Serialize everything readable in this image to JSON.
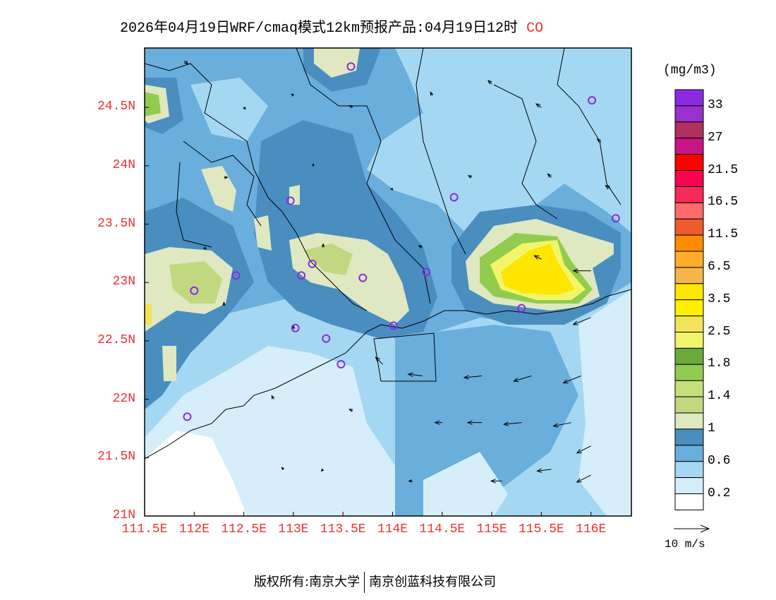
{
  "title": {
    "text": "2026年04月19日WRF/cmaq模式12km预报产品:04月19日12时",
    "species": "CO"
  },
  "footer": {
    "left": "版权所有:南京大学",
    "right": "南京创蓝科技有限公司"
  },
  "chart_data": {
    "type": "heatmap",
    "title": "2026年04月19日WRF/cmaq模式12km预报产品:04月19日12时 CO",
    "xlim": [
      111.5,
      116.4
    ],
    "ylim": [
      21,
      25
    ],
    "x_ticks": [
      {
        "v": 111.5,
        "label": "111.5E"
      },
      {
        "v": 112,
        "label": "112E"
      },
      {
        "v": 112.5,
        "label": "112.5E"
      },
      {
        "v": 113,
        "label": "113E"
      },
      {
        "v": 113.5,
        "label": "113.5E"
      },
      {
        "v": 114,
        "label": "114E"
      },
      {
        "v": 114.5,
        "label": "114.5E"
      },
      {
        "v": 115,
        "label": "115E"
      },
      {
        "v": 115.5,
        "label": "115.5E"
      },
      {
        "v": 116,
        "label": "116E"
      }
    ],
    "y_ticks": [
      {
        "v": 21,
        "label": "21N"
      },
      {
        "v": 21.5,
        "label": "21.5N"
      },
      {
        "v": 22,
        "label": "22N"
      },
      {
        "v": 22.5,
        "label": "22.5N"
      },
      {
        "v": 23,
        "label": "23N"
      },
      {
        "v": 23.5,
        "label": "23.5N"
      },
      {
        "v": 24,
        "label": "24N"
      },
      {
        "v": 24.5,
        "label": "24.5N"
      }
    ],
    "colorbar": {
      "unit": "(mg/m3)",
      "colors": [
        "#8a2be2",
        "#9932cc",
        "#b03060",
        "#c71585",
        "#ff0000",
        "#ff0050",
        "#f82a5a",
        "#ff6a6a",
        "#ef5a2e",
        "#ff8c00",
        "#ffad2a",
        "#f5b54a",
        "#ffe600",
        "#fff000",
        "#f2e35a",
        "#f2f56a",
        "#6aaa3a",
        "#92cc4e",
        "#c4e07a",
        "#c2d880",
        "#dfe8c0",
        "#4a8ec0",
        "#6aaedc",
        "#a4d8f2",
        "#d6eefa",
        "#ffffff"
      ],
      "labels": [
        "33",
        "27",
        "21.5",
        "16.5",
        "11.5",
        "6.5",
        "3.5",
        "2.5",
        "1.8",
        "1.4",
        "1",
        "0.6",
        "0.2"
      ]
    },
    "wind_reference": {
      "value": 10,
      "label": "10 m/s"
    },
    "stations": [
      [
        113.58,
        24.85
      ],
      [
        116.01,
        24.56
      ],
      [
        112.97,
        23.7
      ],
      [
        114.62,
        23.73
      ],
      [
        116.25,
        23.55
      ],
      [
        113.19,
        23.16
      ],
      [
        113.08,
        23.06
      ],
      [
        112.42,
        23.06
      ],
      [
        112.0,
        22.93
      ],
      [
        113.7,
        23.04
      ],
      [
        114.34,
        23.09
      ],
      [
        113.02,
        22.61
      ],
      [
        113.33,
        22.52
      ],
      [
        114.01,
        22.63
      ],
      [
        113.48,
        22.3
      ],
      [
        115.3,
        22.78
      ],
      [
        111.93,
        21.85
      ]
    ],
    "wind": [
      [
        111.9,
        24.9,
        1,
        -1
      ],
      [
        112.5,
        24.5,
        0.5,
        -0.5
      ],
      [
        113.0,
        24.6,
        -0.5,
        0.5
      ],
      [
        113.6,
        24.5,
        -1,
        0.5
      ],
      [
        114.4,
        24.6,
        -0.5,
        1
      ],
      [
        115.0,
        24.7,
        -1,
        1
      ],
      [
        115.5,
        24.5,
        -1.5,
        1
      ],
      [
        116.1,
        24.2,
        -1,
        1
      ],
      [
        112.3,
        23.9,
        1,
        0
      ],
      [
        113.2,
        24.0,
        0,
        0.5
      ],
      [
        114.0,
        23.8,
        -0.5,
        0
      ],
      [
        114.8,
        23.9,
        -1,
        0.5
      ],
      [
        115.6,
        23.9,
        -1,
        1
      ],
      [
        116.2,
        23.8,
        -1.5,
        1
      ],
      [
        112.1,
        23.3,
        0.5,
        -0.5
      ],
      [
        113.3,
        23.3,
        0,
        1
      ],
      [
        114.3,
        23.3,
        -1,
        0.5
      ],
      [
        115.5,
        23.2,
        -2,
        1
      ],
      [
        116.0,
        23.1,
        -5,
        0
      ],
      [
        112.3,
        22.8,
        0,
        1
      ],
      [
        113.0,
        22.6,
        0,
        1
      ],
      [
        113.9,
        22.3,
        -2,
        2
      ],
      [
        114.3,
        22.2,
        -4,
        0.5
      ],
      [
        114.9,
        22.2,
        -5,
        -0.5
      ],
      [
        115.4,
        22.2,
        -5,
        -1.5
      ],
      [
        115.9,
        22.2,
        -5,
        -2
      ],
      [
        116.0,
        22.7,
        -5,
        -2
      ],
      [
        112.8,
        22.0,
        -0.5,
        1
      ],
      [
        113.6,
        21.9,
        -1,
        0.5
      ],
      [
        114.5,
        21.8,
        -2,
        0
      ],
      [
        114.9,
        21.8,
        -4,
        0
      ],
      [
        115.3,
        21.8,
        -5,
        -0.5
      ],
      [
        115.8,
        21.8,
        -5,
        -1
      ],
      [
        116.0,
        21.6,
        -4,
        -2
      ],
      [
        112.9,
        21.4,
        -0.5,
        0.5
      ],
      [
        113.3,
        21.4,
        -0.5,
        -0.5
      ],
      [
        114.2,
        21.3,
        -1,
        0
      ],
      [
        115.1,
        21.3,
        -3,
        0
      ],
      [
        115.6,
        21.4,
        -4,
        -0.5
      ],
      [
        116.0,
        21.35,
        -4,
        -2
      ]
    ]
  }
}
